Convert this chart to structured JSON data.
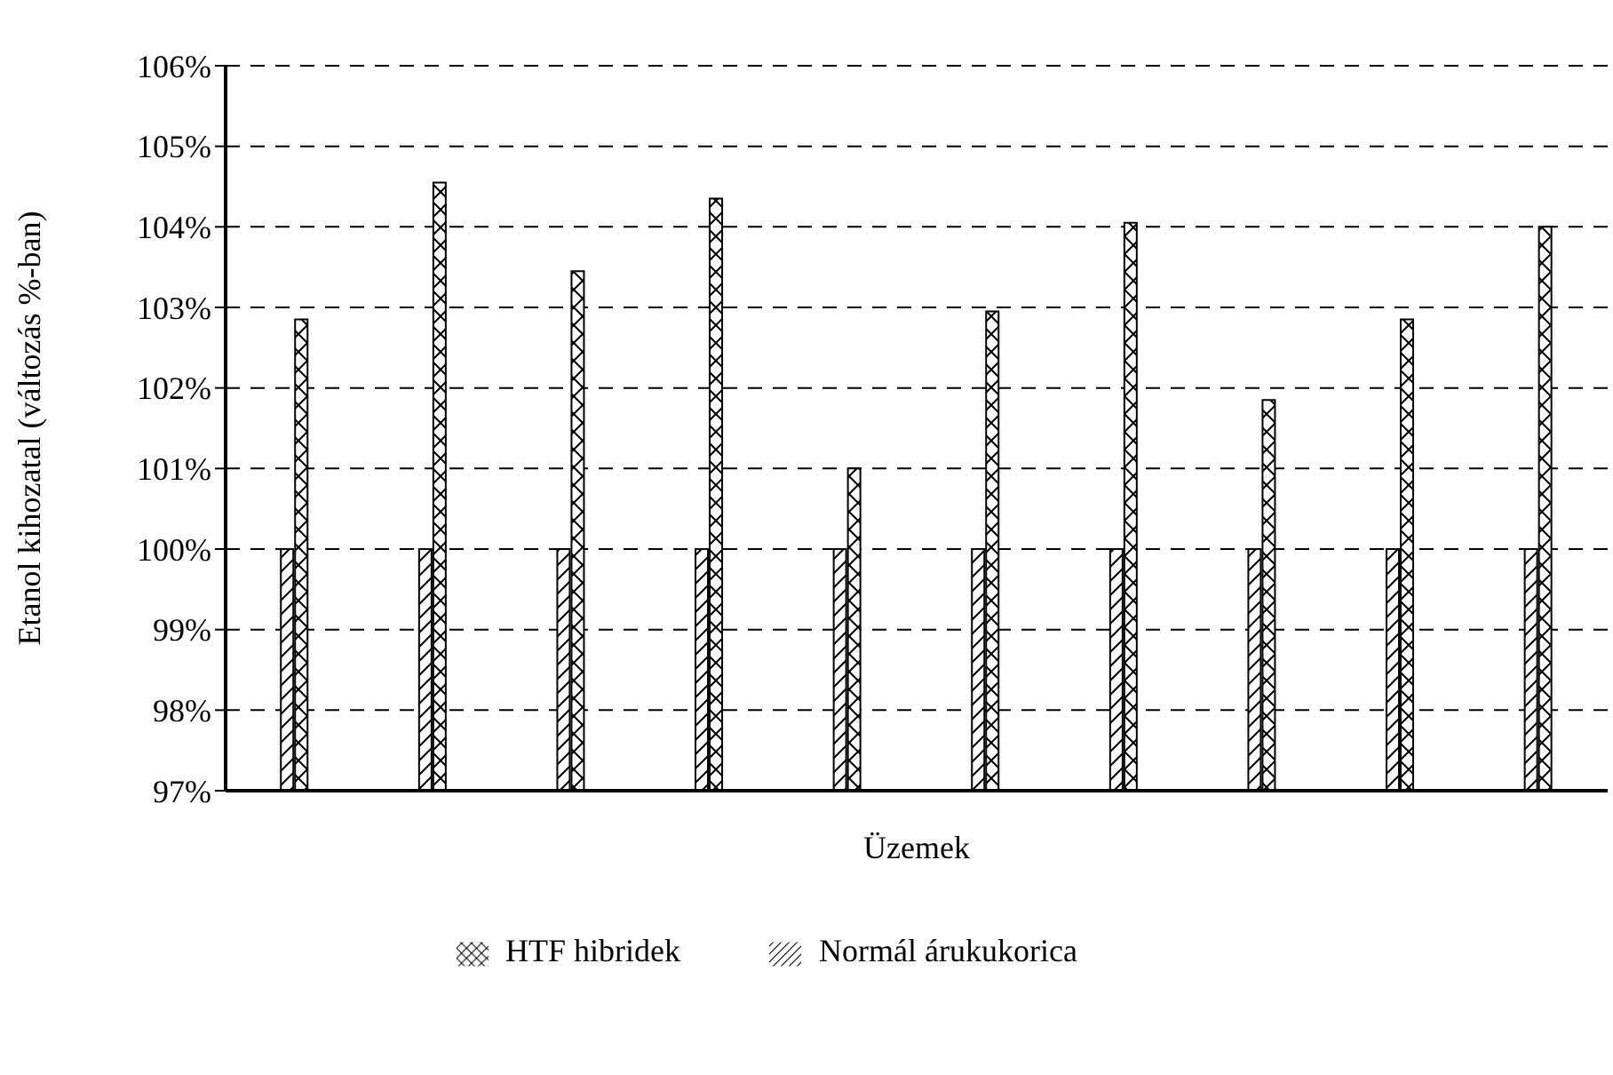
{
  "chart_data": {
    "type": "bar",
    "xlabel": "Üzemek",
    "ylabel": "Etanol kihozatal (változás %-ban)",
    "categories": [
      null,
      null,
      null,
      null,
      null,
      null,
      null,
      null,
      null,
      null
    ],
    "series": [
      {
        "name": "Normál árukukorica",
        "color": "#000000",
        "values": [
          100,
          100,
          100,
          100,
          100,
          100,
          100,
          100,
          100,
          100
        ]
      },
      {
        "name": "HTF hibridek",
        "color": "#000000",
        "values": [
          102.85,
          104.55,
          103.45,
          104.35,
          101,
          102.95,
          104.05,
          101.85,
          102.85,
          104.0
        ]
      }
    ],
    "ylim": [
      97,
      106
    ],
    "yticks": [
      {
        "value": 97,
        "label": "97%"
      },
      {
        "value": 98,
        "label": "98%"
      },
      {
        "value": 99,
        "label": "99%"
      },
      {
        "value": 100,
        "label": "100%"
      },
      {
        "value": 101,
        "label": "101%"
      },
      {
        "value": 102,
        "label": "102%"
      },
      {
        "value": 103,
        "label": "103%"
      },
      {
        "value": 104,
        "label": "104%"
      },
      {
        "value": 105,
        "label": "105%"
      },
      {
        "value": 106,
        "label": "106%"
      }
    ],
    "grid": "y",
    "legend": "bottom"
  }
}
